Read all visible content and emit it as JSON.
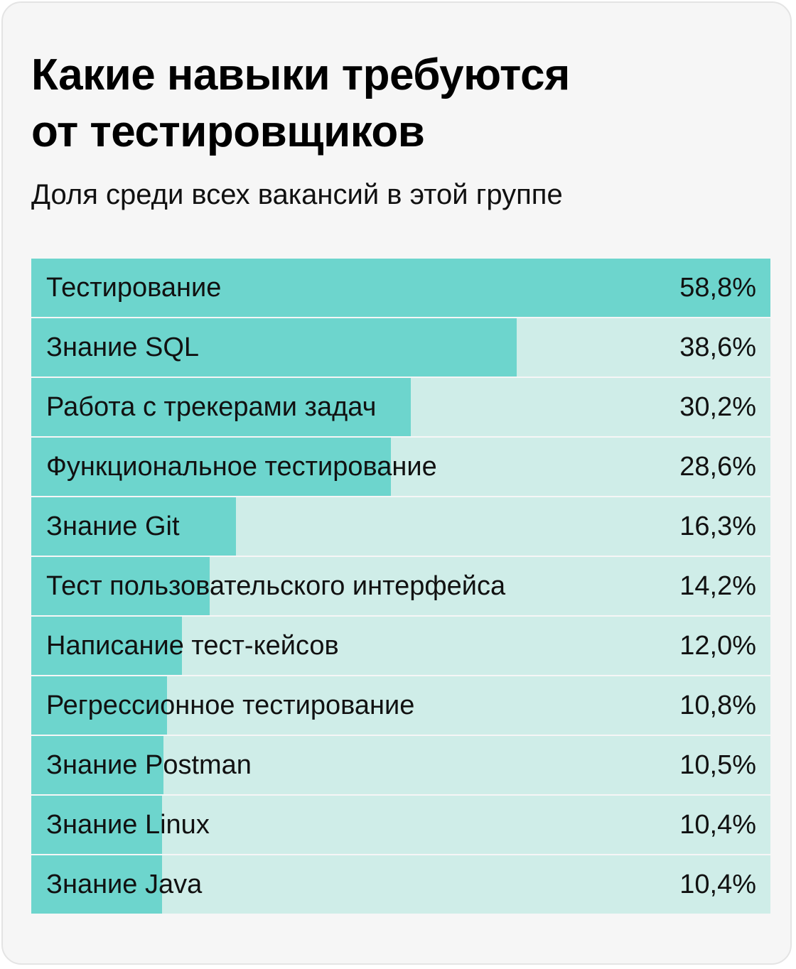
{
  "title_lines": [
    "Какие навыки требуются",
    "от тестировщиков"
  ],
  "subtitle": "Доля среди всех вакансий в этой группе",
  "colors": {
    "bar": "#6dd5cd",
    "track": "#cfede8",
    "card_background": "#f6f6f6"
  },
  "chart_data": {
    "type": "bar",
    "orientation": "horizontal",
    "title": "Какие навыки требуются от тестировщиков",
    "subtitle": "Доля среди всех вакансий в этой группе",
    "unit": "%",
    "xlim": [
      0,
      58.8
    ],
    "categories": [
      "Тестирование",
      "Знание SQL",
      "Работа с трекерами задач",
      "Функциональное тестирование",
      "Знание Git",
      "Тест пользовательского интерфейса",
      "Написание тест-кейсов",
      "Регрессионное тестирование",
      "Знание Postman",
      "Знание Linux",
      "Знание Java"
    ],
    "values": [
      58.8,
      38.6,
      30.2,
      28.6,
      16.3,
      14.2,
      12.0,
      10.8,
      10.5,
      10.4,
      10.4
    ],
    "value_labels": [
      "58,8%",
      "38,6%",
      "30,2%",
      "28,6%",
      "16,3%",
      "14,2%",
      "12,0%",
      "10,8%",
      "10,5%",
      "10,4%",
      "10,4%"
    ]
  }
}
